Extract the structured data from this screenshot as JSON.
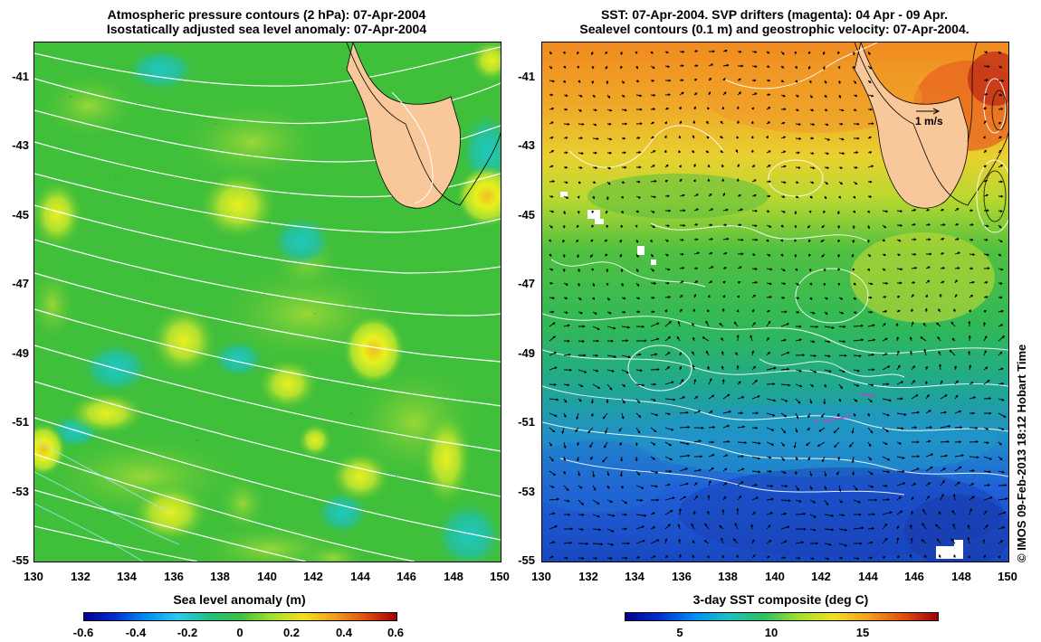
{
  "left_panel": {
    "title_line1": "Atmospheric pressure contours (2 hPa): 07-Apr-2004",
    "title_line2": "Isostatically adjusted sea level anomaly: 07-Apr-2004",
    "colorbar_label": "Sea level anomaly (m)",
    "colorbar_ticks": [
      "-0.6",
      "-0.4",
      "-0.2",
      "0",
      "0.2",
      "0.4",
      "0.6"
    ]
  },
  "right_panel": {
    "title_line1": "SST: 07-Apr-2004. SVP drifters (magenta): 04 Apr - 09 Apr.",
    "title_line2": "Sealevel contours (0.1 m) and geostrophic velocity: 07-Apr-2004.",
    "colorbar_label": "3-day SST composite (deg C)",
    "colorbar_ticks": [
      "5",
      "10",
      "15"
    ],
    "velocity_scale_label": "1 m/s"
  },
  "axes": {
    "lat_ticks": [
      "-41",
      "-43",
      "-45",
      "-47",
      "-49",
      "-51",
      "-53",
      "-55"
    ],
    "lon_ticks": [
      "130",
      "132",
      "134",
      "136",
      "138",
      "140",
      "142",
      "144",
      "146",
      "148",
      "150"
    ]
  },
  "credit": "© IMOS 09-Feb-2013 18:12 Hobart Time",
  "colors": {
    "land": "#f8c89a",
    "contour": "#ffffff",
    "sla_background": "#3fbf3a",
    "sst_warm": "#f09020",
    "sst_cold": "#2050d0"
  }
}
